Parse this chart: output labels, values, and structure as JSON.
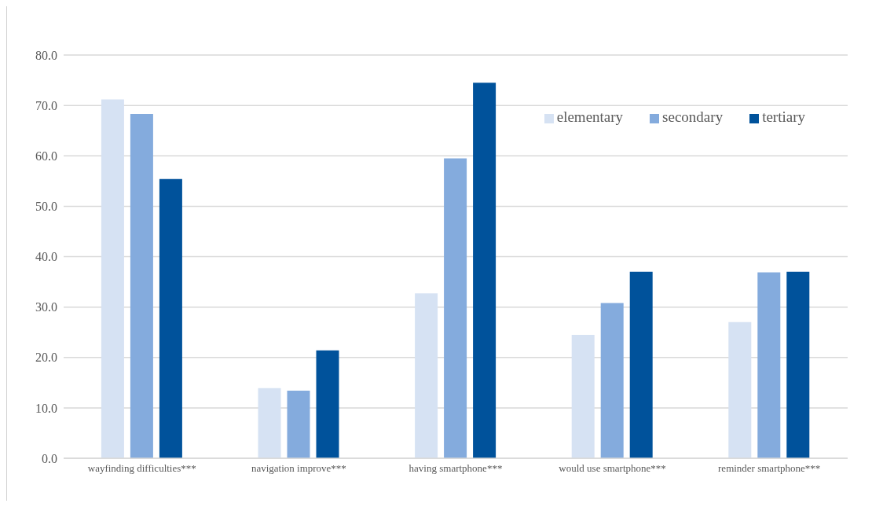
{
  "chart_data": {
    "type": "bar",
    "categories": [
      "wayfinding difficulties***",
      "navigation improve***",
      "having smartphone***",
      "would use smartphone***",
      "reminder smartphone***"
    ],
    "series": [
      {
        "name": "elementary",
        "color": "#d6e2f3",
        "values": [
          71.2,
          13.9,
          32.7,
          24.5,
          27.0
        ]
      },
      {
        "name": "secondary",
        "color": "#84abdd",
        "values": [
          68.3,
          13.4,
          59.5,
          30.8,
          36.9
        ]
      },
      {
        "name": "tertiary",
        "color": "#00529b",
        "values": [
          55.4,
          21.4,
          74.5,
          37.0,
          37.0
        ]
      }
    ],
    "ylim": [
      0,
      80
    ],
    "yticks": [
      {
        "value": 0,
        "label": "0.0"
      },
      {
        "value": 10,
        "label": "10.0"
      },
      {
        "value": 20,
        "label": "20.0"
      },
      {
        "value": 30,
        "label": "30.0"
      },
      {
        "value": 40,
        "label": "40.0"
      },
      {
        "value": 50,
        "label": "50.0"
      },
      {
        "value": 60,
        "label": "60.0"
      },
      {
        "value": 70,
        "label": "70.0"
      },
      {
        "value": 80,
        "label": "80.0"
      }
    ],
    "grid": "y",
    "legend": "top right"
  }
}
